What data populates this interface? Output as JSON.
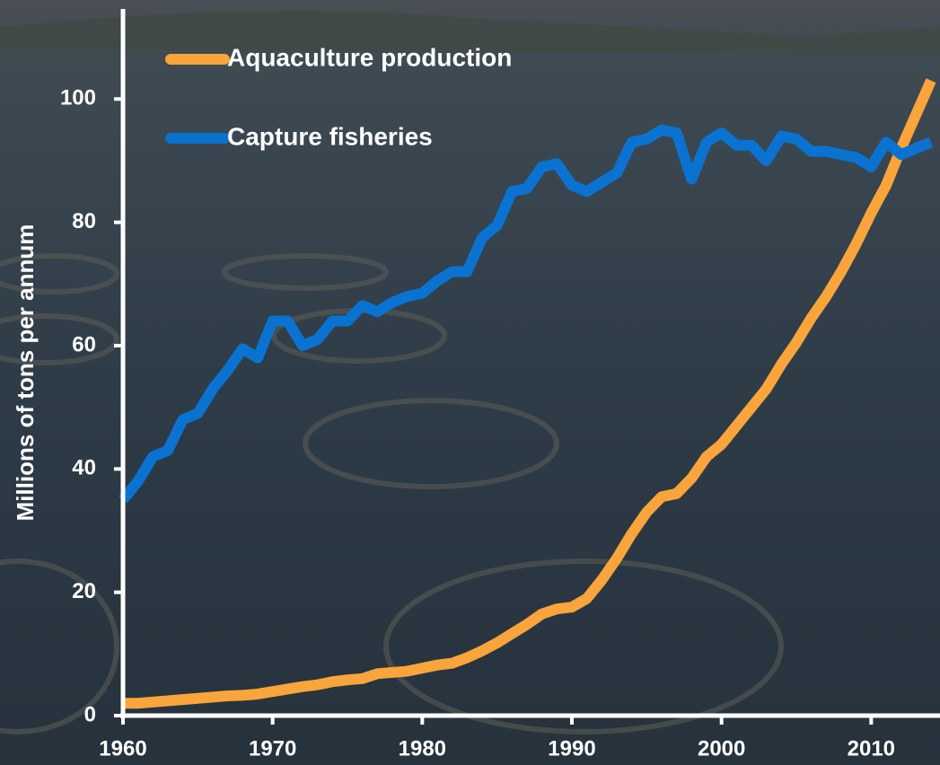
{
  "chart_data": {
    "type": "line",
    "ylabel": "Millions of tons per annum",
    "x": [
      1960,
      1961,
      1962,
      1963,
      1964,
      1965,
      1966,
      1967,
      1968,
      1969,
      1970,
      1971,
      1972,
      1973,
      1974,
      1975,
      1976,
      1977,
      1978,
      1979,
      1980,
      1981,
      1982,
      1983,
      1984,
      1985,
      1986,
      1987,
      1988,
      1989,
      1990,
      1991,
      1992,
      1993,
      1994,
      1995,
      1996,
      1997,
      1998,
      1999,
      2000,
      2001,
      2002,
      2003,
      2004,
      2005,
      2006,
      2007,
      2008,
      2009,
      2010,
      2011,
      2012,
      2013,
      2014
    ],
    "series": [
      {
        "name": "Aquaculture production",
        "color": "#f9a53b",
        "values": [
          2,
          2,
          2.2,
          2.4,
          2.6,
          2.8,
          3,
          3.2,
          3.3,
          3.5,
          3.9,
          4.3,
          4.7,
          5,
          5.5,
          5.8,
          6,
          6.8,
          7,
          7.2,
          7.7,
          8.2,
          8.5,
          9.4,
          10.5,
          11.8,
          13.3,
          14.8,
          16.5,
          17.3,
          17.6,
          19,
          22,
          25.5,
          29.5,
          33,
          35.5,
          36,
          38.5,
          42,
          44,
          47,
          50,
          53,
          57,
          60.5,
          64.5,
          68,
          72,
          76.5,
          81.5,
          86,
          92,
          97.5,
          103
        ]
      },
      {
        "name": "Capture fisheries",
        "color": "#0a73d1",
        "values": [
          35,
          38,
          42,
          43,
          48,
          49,
          53,
          56,
          59.5,
          58,
          64,
          64,
          60,
          61,
          64,
          64,
          66.5,
          65.5,
          67,
          68,
          68.5,
          70.5,
          72,
          72,
          77.5,
          79.5,
          85,
          85.5,
          89,
          89.5,
          86,
          85,
          86.5,
          88,
          93,
          93.5,
          95,
          94.5,
          87,
          93,
          94.5,
          92.5,
          92.5,
          90,
          94,
          93.5,
          91.5,
          91.5,
          91,
          90.5,
          89,
          93,
          91,
          92,
          93
        ]
      }
    ],
    "xlim": [
      1960,
      2014.6
    ],
    "ylim": [
      0,
      114.6
    ],
    "xticks": [
      1960,
      1970,
      1980,
      1990,
      2000,
      2010
    ],
    "yticks": [
      0,
      20,
      40,
      60,
      80,
      100
    ],
    "legend": "top-left"
  }
}
